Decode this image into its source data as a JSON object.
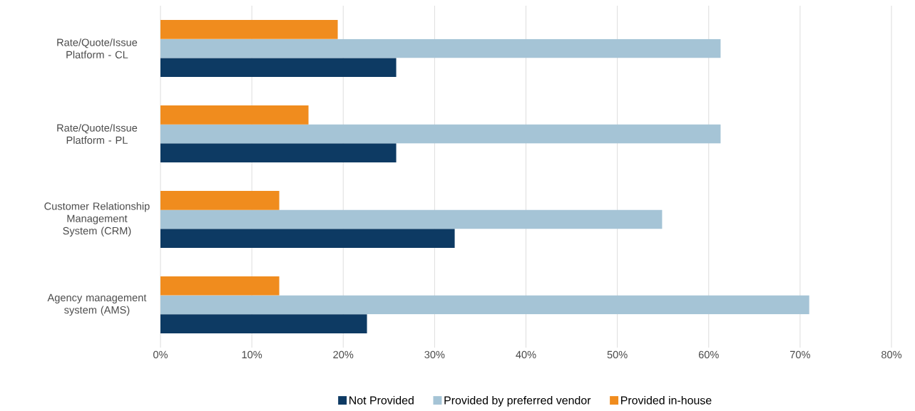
{
  "chart_data": {
    "type": "bar",
    "orientation": "horizontal",
    "categories": [
      "Rate/Quote/Issue Platform - CL",
      "Rate/Quote/Issue Platform - PL",
      "Customer Relationship Management System (CRM)",
      "Agency management system (AMS)"
    ],
    "series": [
      {
        "name": "Not Provided",
        "color": "#0d3a63",
        "values": [
          25.8,
          25.8,
          32.2,
          22.6
        ]
      },
      {
        "name": "Provided by preferred vendor",
        "color": "#a5c4d6",
        "values": [
          61.3,
          61.3,
          54.9,
          71.0
        ]
      },
      {
        "name": "Provided in-house",
        "color": "#f08c1e",
        "values": [
          19.4,
          16.2,
          13.0,
          13.0
        ]
      }
    ],
    "xlim": [
      0,
      80
    ],
    "xticks": [
      {
        "value": 0,
        "label": "0%"
      },
      {
        "value": 10,
        "label": "10%"
      },
      {
        "value": 20,
        "label": "20%"
      },
      {
        "value": 30,
        "label": "30%"
      },
      {
        "value": 40,
        "label": "40%"
      },
      {
        "value": 50,
        "label": "50%"
      },
      {
        "value": 60,
        "label": "60%"
      },
      {
        "value": 70,
        "label": "70%"
      },
      {
        "value": 80,
        "label": "80%"
      }
    ],
    "grid": "x",
    "legend": "bottom"
  }
}
